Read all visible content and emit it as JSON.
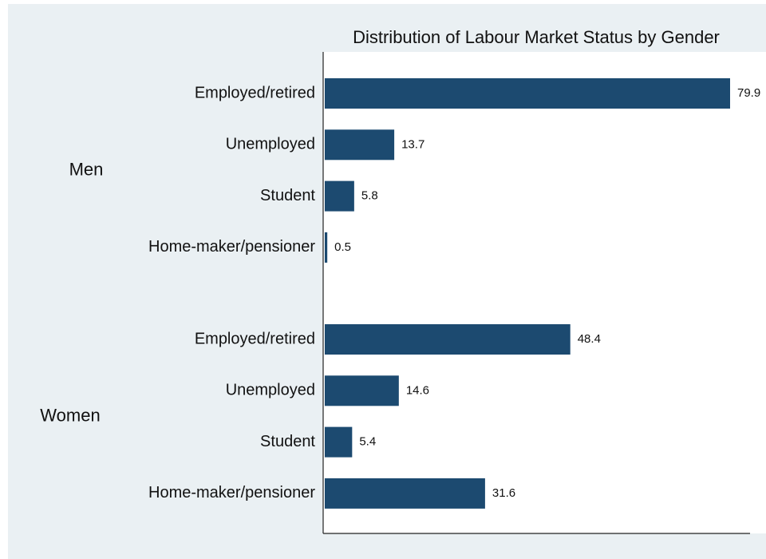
{
  "chart_data": {
    "type": "bar",
    "orientation": "horizontal",
    "title": "Distribution of Labour Market Status by Gender",
    "color": "#1c4a70",
    "groups": [
      {
        "name": "Men",
        "categories": [
          "Employed/retired",
          "Unemployed",
          "Student",
          "Home-maker/pensioner"
        ],
        "values": [
          79.9,
          13.7,
          5.8,
          0.5
        ]
      },
      {
        "name": "Women",
        "categories": [
          "Employed/retired",
          "Unemployed",
          "Student",
          "Home-maker/pensioner"
        ],
        "values": [
          48.4,
          14.6,
          5.4,
          31.6
        ]
      }
    ]
  }
}
